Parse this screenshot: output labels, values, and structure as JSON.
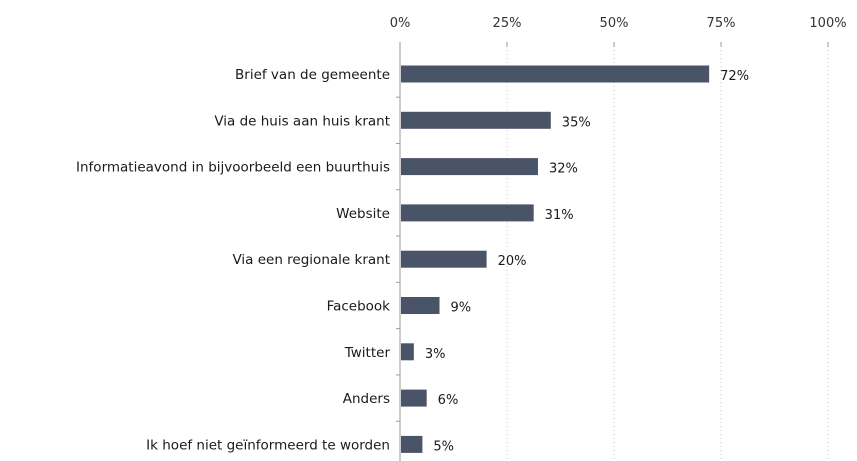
{
  "chart_data": {
    "type": "bar",
    "orientation": "horizontal",
    "categories": [
      "Brief van de gemeente",
      "Via de huis aan huis krant",
      "Informatieavond in bijvoorbeeld een buurthuis",
      "Website",
      "Via een regionale krant",
      "Facebook",
      "Twitter",
      "Anders",
      "Ik hoef niet geïnformeerd te worden"
    ],
    "values": [
      72,
      35,
      32,
      31,
      20,
      9,
      3,
      6,
      5
    ],
    "data_labels": [
      "72%",
      "35%",
      "32%",
      "31%",
      "20%",
      "9%",
      "3%",
      "6%",
      "5%"
    ],
    "xlim": [
      0,
      100
    ],
    "x_ticks": [
      0,
      25,
      50,
      75,
      100
    ],
    "x_tick_labels": [
      "0%",
      "25%",
      "50%",
      "75%",
      "100%"
    ],
    "x_axis_position": "top",
    "grid": true,
    "legend": false,
    "bar_color": "#4a5468",
    "title": "",
    "xlabel": "",
    "ylabel": ""
  }
}
